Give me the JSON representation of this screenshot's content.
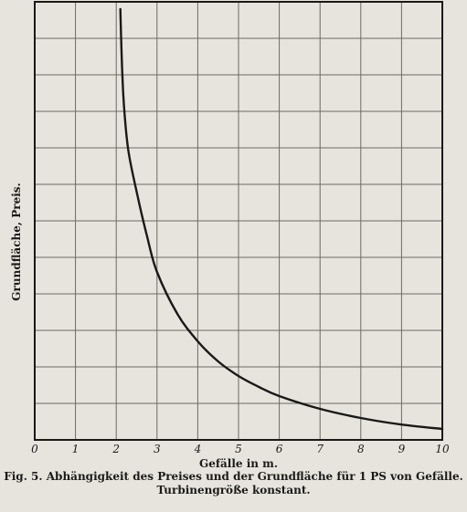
{
  "figure": {
    "caption_line1": "Fig. 5.  Abhängigkeit des Preises und der Grundfläche für 1 PS von Gefälle.",
    "caption_line2": "Turbinengröße konstant."
  },
  "chart_data": {
    "type": "line",
    "title": "",
    "xlabel": "Gefälle in m.",
    "ylabel": "Grundfläche,   Preis.",
    "xlim": [
      0,
      10
    ],
    "x_ticks": [
      "0",
      "1",
      "2",
      "3",
      "4",
      "5",
      "6",
      "7",
      "8",
      "9",
      "10"
    ],
    "grid": true,
    "series": [
      {
        "name": "",
        "points": [
          {
            "x": 2.1,
            "y": 11.8
          },
          {
            "x": 2.15,
            "y": 10.0
          },
          {
            "x": 2.2,
            "y": 9.0
          },
          {
            "x": 2.3,
            "y": 7.9
          },
          {
            "x": 2.5,
            "y": 6.8
          },
          {
            "x": 2.75,
            "y": 5.6
          },
          {
            "x": 3.0,
            "y": 4.6
          },
          {
            "x": 3.5,
            "y": 3.45
          },
          {
            "x": 4.0,
            "y": 2.7
          },
          {
            "x": 4.5,
            "y": 2.15
          },
          {
            "x": 5.0,
            "y": 1.75
          },
          {
            "x": 5.5,
            "y": 1.45
          },
          {
            "x": 6.0,
            "y": 1.2
          },
          {
            "x": 7.0,
            "y": 0.85
          },
          {
            "x": 8.0,
            "y": 0.6
          },
          {
            "x": 9.0,
            "y": 0.42
          },
          {
            "x": 10.0,
            "y": 0.3
          }
        ]
      }
    ],
    "colors": {
      "curve": "#1a1917",
      "grid": "#6d6a64",
      "frame": "#1a1917"
    }
  }
}
